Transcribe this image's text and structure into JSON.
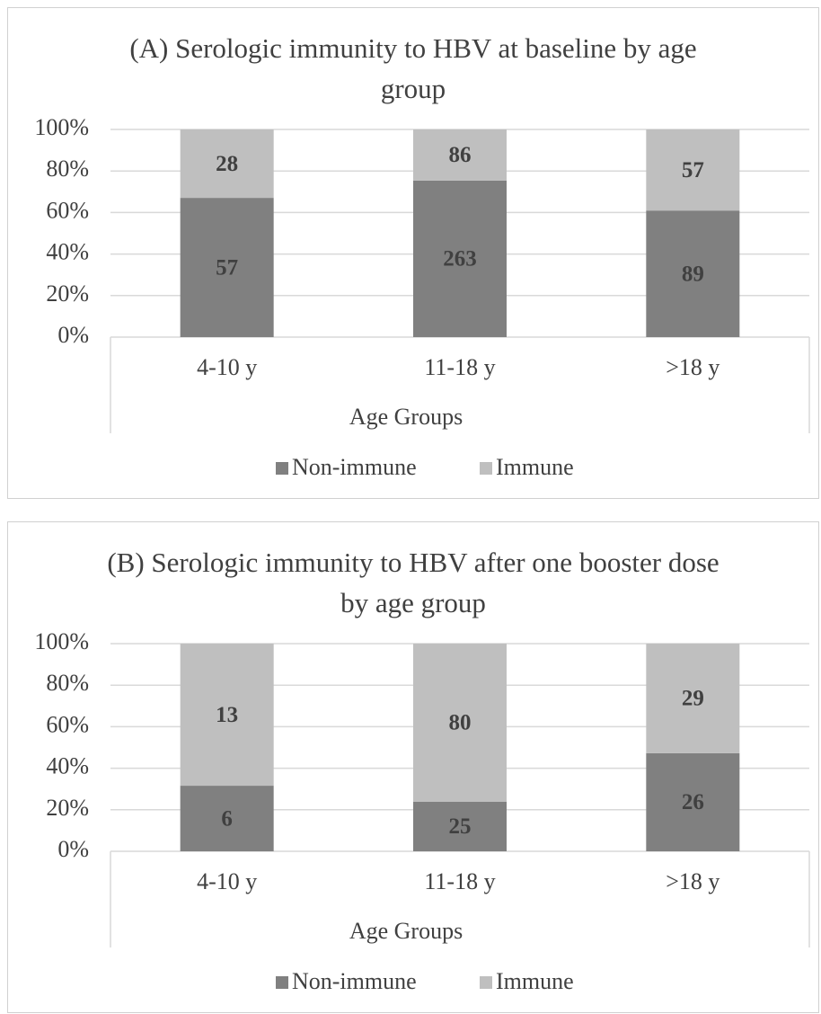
{
  "chart_data": [
    {
      "type": "bar",
      "stacking": "percent",
      "title": "(A) Serologic immunity to HBV at baseline by age group",
      "x_label": "Age Groups",
      "categories": [
        "4-10 y",
        "11-18 y",
        ">18 y"
      ],
      "series": [
        {
          "name": "Non-immune",
          "color": "#808080",
          "values": [
            57,
            263,
            89
          ]
        },
        {
          "name": "Immune",
          "color": "#bfbfbf",
          "values": [
            28,
            86,
            57
          ]
        }
      ],
      "ylim": [
        0,
        100
      ],
      "yticks": [
        {
          "value": 0,
          "label": "0%"
        },
        {
          "value": 20,
          "label": "20%"
        },
        {
          "value": 40,
          "label": "40%"
        },
        {
          "value": 60,
          "label": "60%"
        },
        {
          "value": 80,
          "label": "80%"
        },
        {
          "value": 100,
          "label": "100%"
        }
      ],
      "grid": true,
      "legend": "bottom"
    },
    {
      "type": "bar",
      "stacking": "percent",
      "title": "(B) Serologic immunity to HBV after one booster dose by age group",
      "x_label": "Age Groups",
      "categories": [
        "4-10 y",
        "11-18 y",
        ">18 y"
      ],
      "series": [
        {
          "name": "Non-immune",
          "color": "#808080",
          "values": [
            6,
            25,
            26
          ]
        },
        {
          "name": "Immune",
          "color": "#bfbfbf",
          "values": [
            13,
            80,
            29
          ]
        }
      ],
      "ylim": [
        0,
        100
      ],
      "yticks": [
        {
          "value": 0,
          "label": "0%"
        },
        {
          "value": 20,
          "label": "20%"
        },
        {
          "value": 40,
          "label": "40%"
        },
        {
          "value": 60,
          "label": "60%"
        },
        {
          "value": 80,
          "label": "80%"
        },
        {
          "value": 100,
          "label": "100%"
        }
      ],
      "grid": true,
      "legend": "bottom"
    }
  ]
}
